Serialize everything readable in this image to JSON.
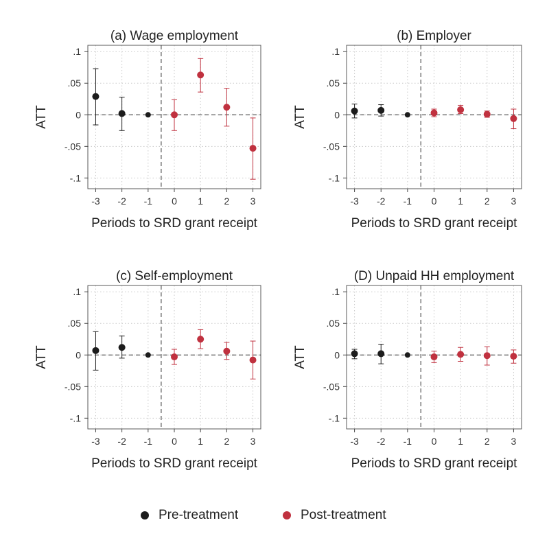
{
  "colors": {
    "pre": "#1c1c1c",
    "post": "#c0313f",
    "grid": "#c8c8c8",
    "frame": "#5a5a5a"
  },
  "legend": {
    "pre_label": "Pre-treatment",
    "post_label": "Post-treatment",
    "placement": "bottom-center"
  },
  "chart_data": [
    {
      "type": "scatter",
      "title": "(a) Wage employment",
      "xlabel": "Periods to SRD grant receipt",
      "ylabel": "ATT",
      "xlim": [
        -3.3,
        3.3
      ],
      "ylim": [
        -0.117,
        0.11
      ],
      "x_ticks": [
        -3,
        -2,
        -1,
        0,
        1,
        2,
        3
      ],
      "x_tick_labels": [
        "-3",
        "-2",
        "-1",
        "0",
        "1",
        "2",
        "3"
      ],
      "y_ticks": [
        0.1,
        0.05,
        0,
        -0.05,
        -0.1
      ],
      "y_tick_labels": [
        ".1",
        ".05",
        "0",
        "-.05",
        "-.1"
      ],
      "grid": true,
      "treatment_line_x": -0.5,
      "series": [
        {
          "name": "Pre-treatment",
          "points": [
            {
              "x": -3,
              "y": 0.029,
              "lo": -0.016,
              "hi": 0.073
            },
            {
              "x": -2,
              "y": 0.002,
              "lo": -0.025,
              "hi": 0.028
            },
            {
              "x": -1,
              "y": 0.0,
              "lo": 0.0,
              "hi": 0.0
            }
          ]
        },
        {
          "name": "Post-treatment",
          "points": [
            {
              "x": 0,
              "y": 0.0,
              "lo": -0.025,
              "hi": 0.024
            },
            {
              "x": 1,
              "y": 0.063,
              "lo": 0.036,
              "hi": 0.089
            },
            {
              "x": 2,
              "y": 0.012,
              "lo": -0.018,
              "hi": 0.042
            },
            {
              "x": 3,
              "y": -0.053,
              "lo": -0.102,
              "hi": -0.005
            }
          ]
        }
      ]
    },
    {
      "type": "scatter",
      "title": "(b) Employer",
      "xlabel": "Periods to SRD grant receipt",
      "ylabel": "ATT",
      "xlim": [
        -3.3,
        3.3
      ],
      "ylim": [
        -0.117,
        0.11
      ],
      "x_ticks": [
        -3,
        -2,
        -1,
        0,
        1,
        2,
        3
      ],
      "x_tick_labels": [
        "-3",
        "-2",
        "-1",
        "0",
        "1",
        "2",
        "3"
      ],
      "y_ticks": [
        0.1,
        0.05,
        0,
        -0.05,
        -0.1
      ],
      "y_tick_labels": [
        ".1",
        ".05",
        "0",
        "-.05",
        "-.1"
      ],
      "grid": true,
      "treatment_line_x": -0.5,
      "series": [
        {
          "name": "Pre-treatment",
          "points": [
            {
              "x": -3,
              "y": 0.006,
              "lo": -0.005,
              "hi": 0.017
            },
            {
              "x": -2,
              "y": 0.007,
              "lo": -0.002,
              "hi": 0.016
            },
            {
              "x": -1,
              "y": 0.0,
              "lo": 0.0,
              "hi": 0.0
            }
          ]
        },
        {
          "name": "Post-treatment",
          "points": [
            {
              "x": 0,
              "y": 0.003,
              "lo": -0.003,
              "hi": 0.009
            },
            {
              "x": 1,
              "y": 0.008,
              "lo": 0.002,
              "hi": 0.015
            },
            {
              "x": 2,
              "y": 0.001,
              "lo": -0.004,
              "hi": 0.006
            },
            {
              "x": 3,
              "y": -0.006,
              "lo": -0.022,
              "hi": 0.009
            }
          ]
        }
      ]
    },
    {
      "type": "scatter",
      "title": "(c) Self-employment",
      "xlabel": "Periods to SRD grant receipt",
      "ylabel": "ATT",
      "xlim": [
        -3.3,
        3.3
      ],
      "ylim": [
        -0.117,
        0.11
      ],
      "x_ticks": [
        -3,
        -2,
        -1,
        0,
        1,
        2,
        3
      ],
      "x_tick_labels": [
        "-3",
        "-2",
        "-1",
        "0",
        "1",
        "2",
        "3"
      ],
      "y_ticks": [
        0.1,
        0.05,
        0,
        -0.05,
        -0.1
      ],
      "y_tick_labels": [
        ".1",
        ".05",
        "0",
        "-.05",
        "-.1"
      ],
      "grid": true,
      "treatment_line_x": -0.5,
      "series": [
        {
          "name": "Pre-treatment",
          "points": [
            {
              "x": -3,
              "y": 0.007,
              "lo": -0.024,
              "hi": 0.037
            },
            {
              "x": -2,
              "y": 0.012,
              "lo": -0.005,
              "hi": 0.03
            },
            {
              "x": -1,
              "y": 0.0,
              "lo": 0.0,
              "hi": 0.0
            }
          ]
        },
        {
          "name": "Post-treatment",
          "points": [
            {
              "x": 0,
              "y": -0.003,
              "lo": -0.015,
              "hi": 0.009
            },
            {
              "x": 1,
              "y": 0.025,
              "lo": 0.01,
              "hi": 0.04
            },
            {
              "x": 2,
              "y": 0.006,
              "lo": -0.007,
              "hi": 0.02
            },
            {
              "x": 3,
              "y": -0.008,
              "lo": -0.038,
              "hi": 0.022
            }
          ]
        }
      ]
    },
    {
      "type": "scatter",
      "title": "(D) Unpaid HH employment",
      "xlabel": "Periods to SRD grant receipt",
      "ylabel": "ATT",
      "xlim": [
        -3.3,
        3.3
      ],
      "ylim": [
        -0.117,
        0.11
      ],
      "x_ticks": [
        -3,
        -2,
        -1,
        0,
        1,
        2,
        3
      ],
      "x_tick_labels": [
        "-3",
        "-2",
        "-1",
        "0",
        "1",
        "2",
        "3"
      ],
      "y_ticks": [
        0.1,
        0.05,
        0,
        -0.05,
        -0.1
      ],
      "y_tick_labels": [
        ".1",
        ".05",
        "0",
        "-.05",
        "-.1"
      ],
      "grid": true,
      "treatment_line_x": -0.5,
      "series": [
        {
          "name": "Pre-treatment",
          "points": [
            {
              "x": -3,
              "y": 0.002,
              "lo": -0.006,
              "hi": 0.009
            },
            {
              "x": -2,
              "y": 0.002,
              "lo": -0.014,
              "hi": 0.017
            },
            {
              "x": -1,
              "y": 0.0,
              "lo": 0.0,
              "hi": 0.0
            }
          ]
        },
        {
          "name": "Post-treatment",
          "points": [
            {
              "x": 0,
              "y": -0.003,
              "lo": -0.012,
              "hi": 0.006
            },
            {
              "x": 1,
              "y": 0.001,
              "lo": -0.01,
              "hi": 0.012
            },
            {
              "x": 2,
              "y": -0.001,
              "lo": -0.016,
              "hi": 0.013
            },
            {
              "x": 3,
              "y": -0.002,
              "lo": -0.013,
              "hi": 0.008
            }
          ]
        }
      ]
    }
  ]
}
